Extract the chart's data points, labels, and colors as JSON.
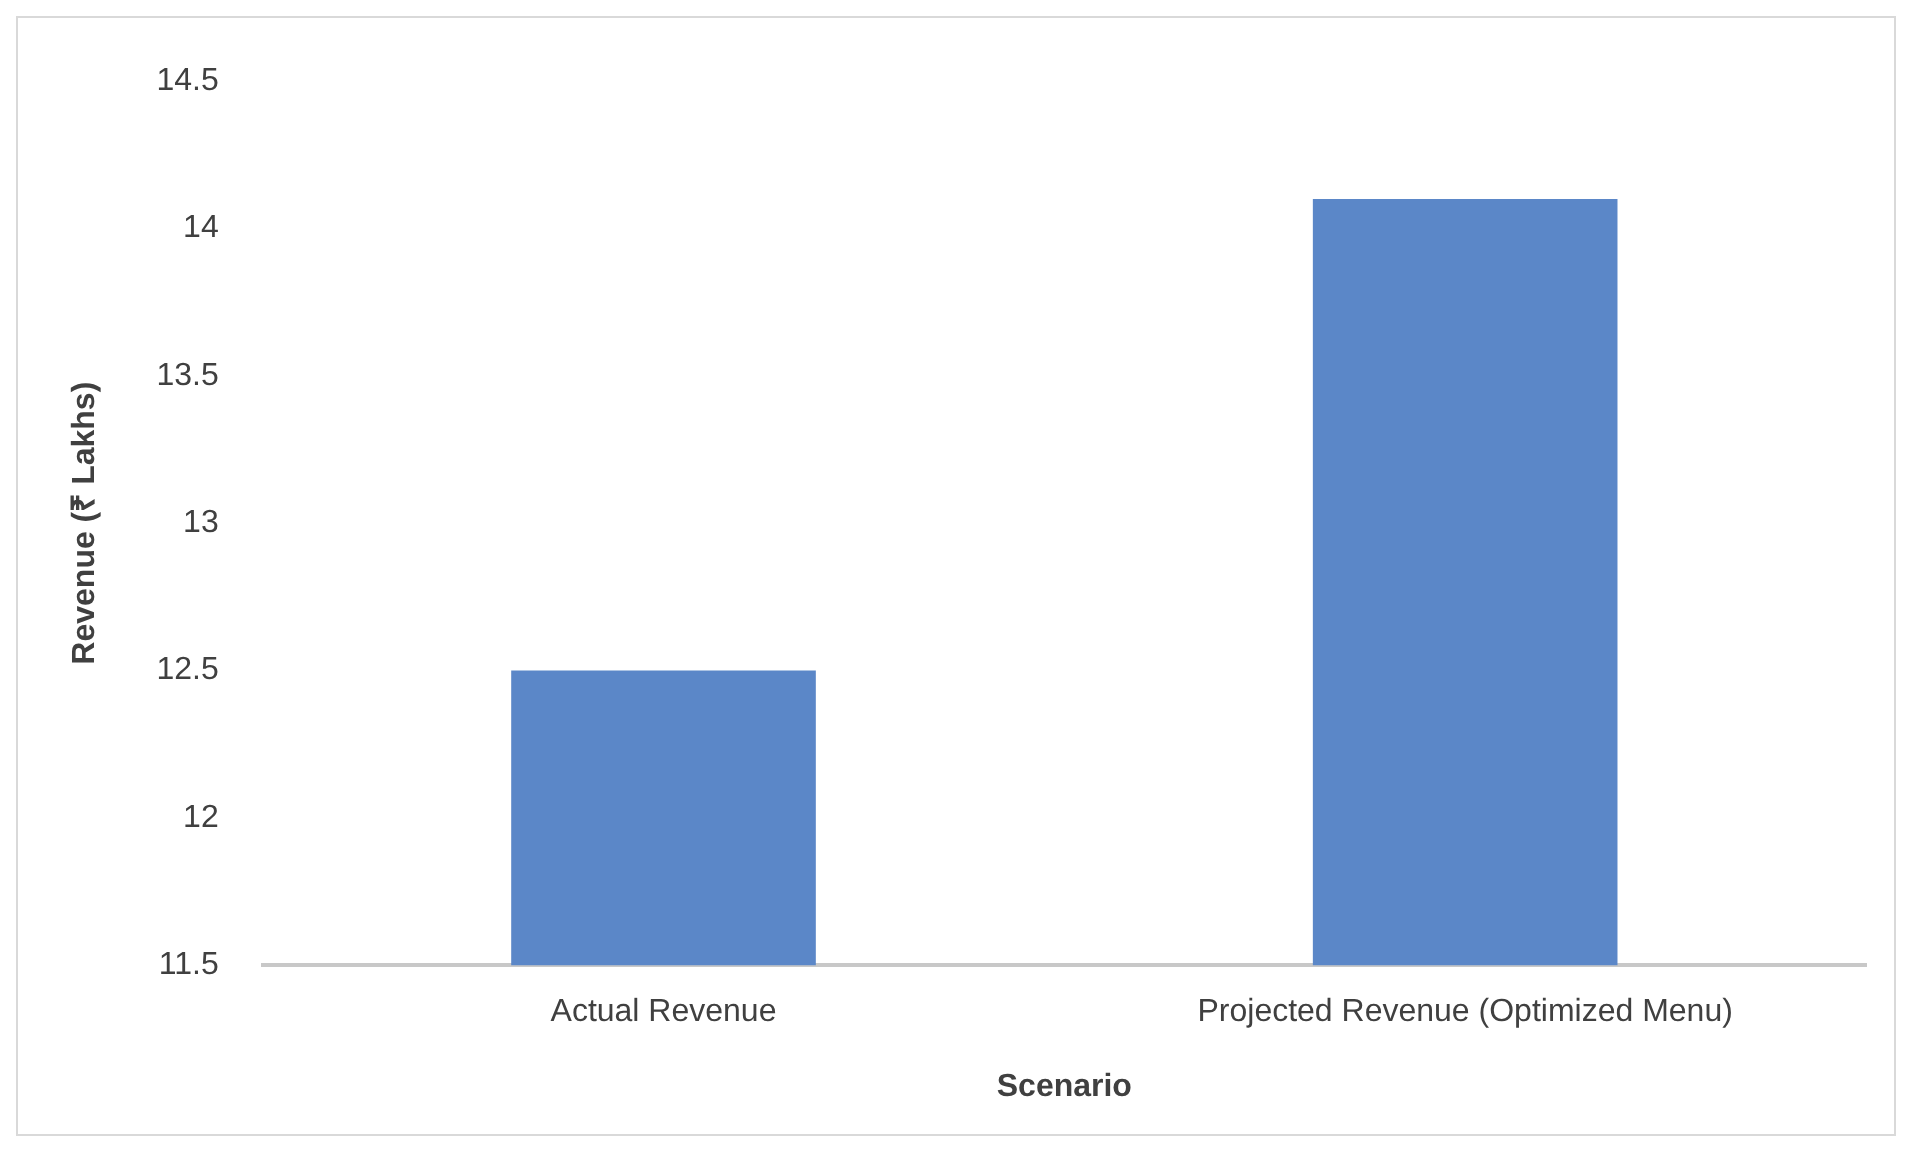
{
  "chart_data": {
    "type": "bar",
    "xlabel": "Scenario",
    "ylabel": "Revenue (₹ Lakhs)",
    "categories": [
      "Actual Revenue",
      "Projected Revenue (Optimized Menu)"
    ],
    "values": [
      12.5,
      14.1
    ],
    "color": "#5b87c8",
    "ylim": [
      11.5,
      14.5
    ],
    "yticks": [
      11.5,
      12,
      12.5,
      13,
      13.5,
      14,
      14.5
    ],
    "grid": false
  }
}
